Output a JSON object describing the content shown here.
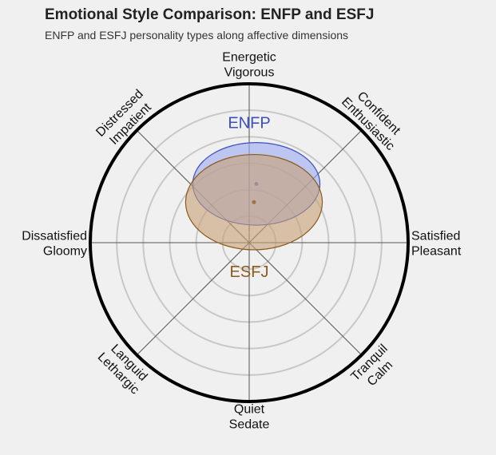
{
  "title": "Emotional Style Comparison: ENFP and ESFJ",
  "subtitle": "ENFP and ESFJ personality types along affective dimensions",
  "chart_data": {
    "type": "radar-ellipse",
    "axis_range": [
      -1,
      1
    ],
    "grid": true,
    "grid_rings": 5,
    "axes": [
      {
        "angle": 90,
        "lines": [
          "Energetic",
          "Vigorous"
        ]
      },
      {
        "angle": 45,
        "lines": [
          "Confident",
          "Enthusiastic"
        ]
      },
      {
        "angle": 0,
        "lines": [
          "Satisfied",
          "Pleasant"
        ]
      },
      {
        "angle": -45,
        "lines": [
          "Tranquil",
          "Calm"
        ]
      },
      {
        "angle": -90,
        "lines": [
          "Quiet",
          "Sedate"
        ]
      },
      {
        "angle": -135,
        "lines": [
          "Languid",
          "Lethargic"
        ]
      },
      {
        "angle": 180,
        "lines": [
          "Dissatisfied",
          "Gloomy"
        ]
      },
      {
        "angle": 135,
        "lines": [
          "Distressed",
          "Impatient"
        ]
      }
    ],
    "series": [
      {
        "name": "ENFP",
        "x": 0.045,
        "y": 0.37,
        "x_spread": 0.4,
        "y_spread": 0.26,
        "color": "#3b4fbf",
        "fill": "#9aaaf0",
        "label_position": "above"
      },
      {
        "name": "ESFJ",
        "x": 0.03,
        "y": 0.255,
        "x_spread": 0.43,
        "y_spread": 0.3,
        "color": "#8b5a1e",
        "fill": "#c8a074",
        "label_position": "below"
      }
    ]
  }
}
